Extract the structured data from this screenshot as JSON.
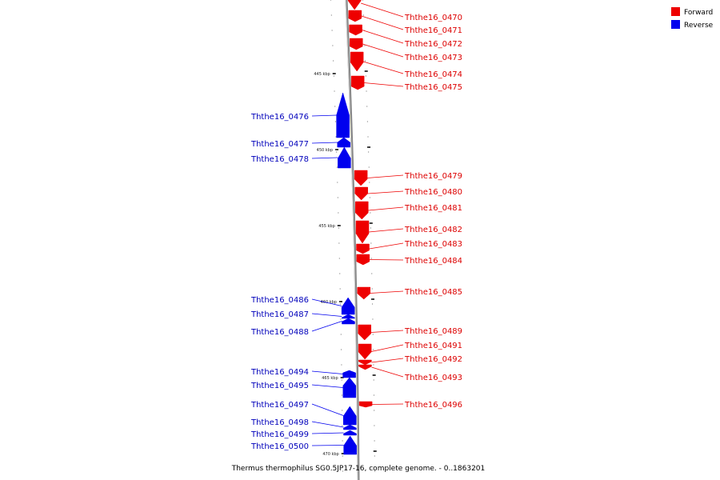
{
  "caption": "Thermus thermophilus SG0.5JP17-16, complete genome. - 0..1863201",
  "legend": [
    {
      "label": "Forward",
      "color": "#ee0000"
    },
    {
      "label": "Reverse",
      "color": "#0000ee"
    }
  ],
  "scale_labels": [
    "445 kbp",
    "450 kbp",
    "455 kbp",
    "460 kbp",
    "465 kbp",
    "470 kbp"
  ],
  "genes": [
    {
      "name": "Ththe16_0470",
      "strand": "forward"
    },
    {
      "name": "Ththe16_0471",
      "strand": "forward"
    },
    {
      "name": "Ththe16_0472",
      "strand": "forward"
    },
    {
      "name": "Ththe16_0473",
      "strand": "forward"
    },
    {
      "name": "Ththe16_0474",
      "strand": "forward"
    },
    {
      "name": "Ththe16_0475",
      "strand": "forward"
    },
    {
      "name": "Ththe16_0476",
      "strand": "reverse"
    },
    {
      "name": "Ththe16_0477",
      "strand": "reverse"
    },
    {
      "name": "Ththe16_0478",
      "strand": "reverse"
    },
    {
      "name": "Ththe16_0479",
      "strand": "forward"
    },
    {
      "name": "Ththe16_0480",
      "strand": "forward"
    },
    {
      "name": "Ththe16_0481",
      "strand": "forward"
    },
    {
      "name": "Ththe16_0482",
      "strand": "forward"
    },
    {
      "name": "Ththe16_0483",
      "strand": "forward"
    },
    {
      "name": "Ththe16_0484",
      "strand": "forward"
    },
    {
      "name": "Ththe16_0485",
      "strand": "forward"
    },
    {
      "name": "Ththe16_0486",
      "strand": "reverse"
    },
    {
      "name": "Ththe16_0487",
      "strand": "reverse"
    },
    {
      "name": "Ththe16_0488",
      "strand": "reverse"
    },
    {
      "name": "Ththe16_0489",
      "strand": "forward"
    },
    {
      "name": "Ththe16_0491",
      "strand": "forward"
    },
    {
      "name": "Ththe16_0492",
      "strand": "forward"
    },
    {
      "name": "Ththe16_0493",
      "strand": "forward"
    },
    {
      "name": "Ththe16_0494",
      "strand": "reverse"
    },
    {
      "name": "Ththe16_0495",
      "strand": "reverse"
    },
    {
      "name": "Ththe16_0496",
      "strand": "forward"
    },
    {
      "name": "Ththe16_0497",
      "strand": "reverse"
    },
    {
      "name": "Ththe16_0498",
      "strand": "reverse"
    },
    {
      "name": "Ththe16_0499",
      "strand": "reverse"
    },
    {
      "name": "Ththe16_0500",
      "strand": "reverse"
    }
  ]
}
